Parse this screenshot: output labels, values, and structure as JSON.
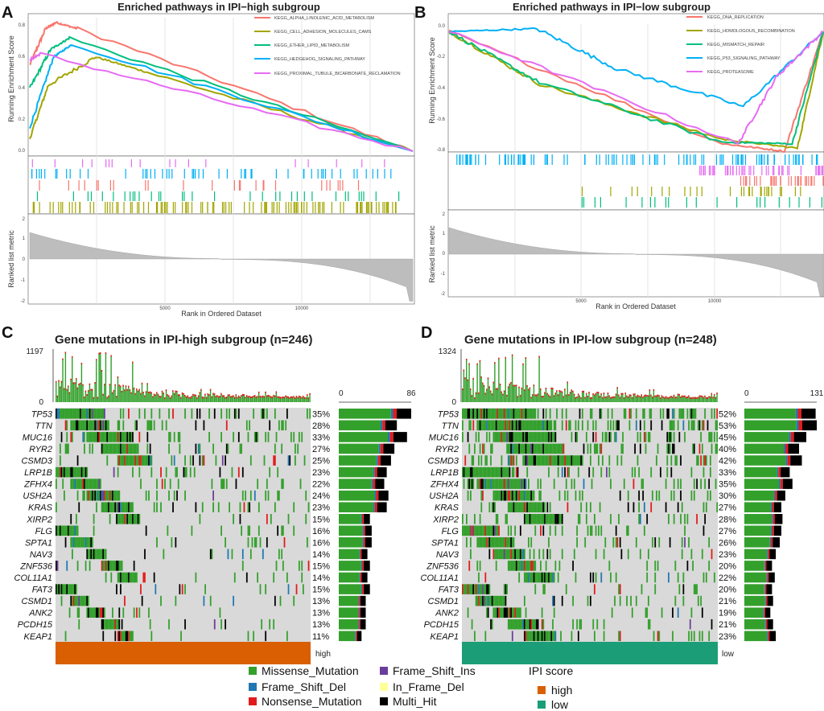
{
  "colors": {
    "Missense_Mutation": "#33a02c",
    "Frame_Shift_Del": "#1f78b4",
    "Nonsense_Mutation": "#e31a1c",
    "Frame_Shift_Ins": "#6a3d9a",
    "In_Frame_Del": "#ffff99",
    "Multi_Hit": "#000000",
    "ipi_high": "#d95f02",
    "ipi_low": "#1b9e77",
    "bg_cell": "#d9d9d9"
  },
  "panels": {
    "A": {
      "letter": "A",
      "title": "Enriched pathways in IPI−high subgroup",
      "ylabel_es": "Running Enrichment Score",
      "ylabel_rank": "Ranked list metric",
      "xlabel": "Rank in Ordered Dataset",
      "es_ticks": [
        "0.0",
        "0.2",
        "0.4",
        "0.6",
        "0.8"
      ],
      "rank_ticks": [
        "2",
        "1",
        "0",
        "-1",
        "-2"
      ],
      "x_ticks": [
        "5000",
        "10000"
      ],
      "legend": [
        {
          "name": "KEGG_ALPHA_LINOLENIC_ACID_METABOLISM",
          "color": "#f8766d"
        },
        {
          "name": "KEGG_CELL_ADHESION_MOLECULES_CAMS",
          "color": "#a3a500"
        },
        {
          "name": "KEGG_ETHER_LIPID_METABOLISM",
          "color": "#00bf7d"
        },
        {
          "name": "KEGG_HEDGEHOG_SIGNALING_PATHWAY",
          "color": "#00b0f6"
        },
        {
          "name": "KEGG_PROXIMAL_TUBULE_BICARBONATE_RECLAMATION",
          "color": "#e76bf3"
        }
      ]
    },
    "B": {
      "letter": "B",
      "title": "Enriched pathways in IPI−low subgroup",
      "ylabel_es": "Running Enrichment Score",
      "ylabel_rank": "Ranked list metric",
      "xlabel": "Rank in Ordered Dataset",
      "es_ticks": [
        "0.0",
        "-0.2",
        "-0.4",
        "-0.6",
        "-0.8"
      ],
      "rank_ticks": [
        "2",
        "1",
        "0",
        "-1",
        "-2"
      ],
      "x_ticks": [
        "5000",
        "10000"
      ],
      "legend": [
        {
          "name": "KEGG_DNA_REPLICATION",
          "color": "#f8766d"
        },
        {
          "name": "KEGG_HOMOLOGOUS_RECOMBINATION",
          "color": "#a3a500"
        },
        {
          "name": "KEGG_MISMATCH_REPAIR",
          "color": "#00bf7d"
        },
        {
          "name": "KEGG_P53_SIGNALING_PATHWAY",
          "color": "#00b0f6"
        },
        {
          "name": "KEGG_PROTEASOME",
          "color": "#e76bf3"
        }
      ]
    },
    "C": {
      "letter": "C",
      "title": "Gene mutations in IPI-high subgroup (n=246)",
      "tmb_max": "1197",
      "tmb_min": "0",
      "bar_min": "0",
      "bar_max": "86",
      "group_label": "high",
      "genes": [
        {
          "gene": "TP53",
          "pct": "35%",
          "count": 86
        },
        {
          "gene": "TTN",
          "pct": "28%",
          "count": 69
        },
        {
          "gene": "MUC16",
          "pct": "33%",
          "count": 81
        },
        {
          "gene": "RYR2",
          "pct": "27%",
          "count": 66
        },
        {
          "gene": "CSMD3",
          "pct": "25%",
          "count": 62
        },
        {
          "gene": "LRP1B",
          "pct": "23%",
          "count": 57
        },
        {
          "gene": "ZFHX4",
          "pct": "22%",
          "count": 54
        },
        {
          "gene": "USH2A",
          "pct": "24%",
          "count": 59
        },
        {
          "gene": "KRAS",
          "pct": "23%",
          "count": 57
        },
        {
          "gene": "XIRP2",
          "pct": "15%",
          "count": 37
        },
        {
          "gene": "FLG",
          "pct": "16%",
          "count": 39
        },
        {
          "gene": "SPTA1",
          "pct": "16%",
          "count": 39
        },
        {
          "gene": "NAV3",
          "pct": "14%",
          "count": 34
        },
        {
          "gene": "ZNF536",
          "pct": "15%",
          "count": 37
        },
        {
          "gene": "COL11A1",
          "pct": "14%",
          "count": 34
        },
        {
          "gene": "FAT3",
          "pct": "15%",
          "count": 37
        },
        {
          "gene": "CSMD1",
          "pct": "13%",
          "count": 32
        },
        {
          "gene": "ANK2",
          "pct": "13%",
          "count": 32
        },
        {
          "gene": "PCDH15",
          "pct": "13%",
          "count": 32
        },
        {
          "gene": "KEAP1",
          "pct": "11%",
          "count": 27
        }
      ]
    },
    "D": {
      "letter": "D",
      "title": "Gene mutations in IPI-low subgroup (n=248)",
      "tmb_max": "1324",
      "tmb_min": "0",
      "bar_min": "0",
      "bar_max": "131",
      "group_label": "low",
      "genes": [
        {
          "gene": "TP53",
          "pct": "52%",
          "count": 129
        },
        {
          "gene": "TTN",
          "pct": "53%",
          "count": 131
        },
        {
          "gene": "MUC16",
          "pct": "45%",
          "count": 112
        },
        {
          "gene": "RYR2",
          "pct": "40%",
          "count": 99
        },
        {
          "gene": "CSMD3",
          "pct": "42%",
          "count": 104
        },
        {
          "gene": "LRP1B",
          "pct": "33%",
          "count": 82
        },
        {
          "gene": "ZFHX4",
          "pct": "35%",
          "count": 87
        },
        {
          "gene": "USH2A",
          "pct": "30%",
          "count": 74
        },
        {
          "gene": "KRAS",
          "pct": "27%",
          "count": 67
        },
        {
          "gene": "XIRP2",
          "pct": "28%",
          "count": 69
        },
        {
          "gene": "FLG",
          "pct": "27%",
          "count": 67
        },
        {
          "gene": "SPTA1",
          "pct": "26%",
          "count": 64
        },
        {
          "gene": "NAV3",
          "pct": "23%",
          "count": 57
        },
        {
          "gene": "ZNF536",
          "pct": "20%",
          "count": 50
        },
        {
          "gene": "COL11A1",
          "pct": "22%",
          "count": 55
        },
        {
          "gene": "FAT3",
          "pct": "20%",
          "count": 50
        },
        {
          "gene": "CSMD1",
          "pct": "21%",
          "count": 52
        },
        {
          "gene": "ANK2",
          "pct": "19%",
          "count": 47
        },
        {
          "gene": "PCDH15",
          "pct": "21%",
          "count": 52
        },
        {
          "gene": "KEAP1",
          "pct": "23%",
          "count": 57
        }
      ]
    }
  },
  "legend": {
    "items": [
      {
        "label": "Missense_Mutation",
        "key": "Missense_Mutation"
      },
      {
        "label": "Frame_Shift_Del",
        "key": "Frame_Shift_Del"
      },
      {
        "label": "Nonsense_Mutation",
        "key": "Nonsense_Mutation"
      },
      {
        "label": "Frame_Shift_Ins",
        "key": "Frame_Shift_Ins"
      },
      {
        "label": "In_Frame_Del",
        "key": "In_Frame_Del"
      },
      {
        "label": "Multi_Hit",
        "key": "Multi_Hit"
      }
    ],
    "ipi_title": "IPI score",
    "ipi_items": [
      {
        "label": "high",
        "key": "ipi_high"
      },
      {
        "label": "low",
        "key": "ipi_low"
      }
    ]
  },
  "chart_data": [
    {
      "type": "line",
      "title": "Enriched pathways in IPI−high subgroup",
      "xlabel": "Rank in Ordered Dataset",
      "ylabel": "Running Enrichment Score",
      "xlim": [
        0,
        14500
      ],
      "ylim": [
        0,
        0.85
      ],
      "series": [
        {
          "name": "KEGG_ALPHA_LINOLENIC_ACID_METABOLISM",
          "x": [
            0,
            600,
            1000,
            1800,
            14500
          ],
          "values": [
            0.55,
            0.78,
            0.82,
            0.78,
            0.0
          ]
        },
        {
          "name": "KEGG_CELL_ADHESION_MOLECULES_CAMS",
          "x": [
            0,
            700,
            2500,
            4500,
            14500
          ],
          "values": [
            0.08,
            0.42,
            0.6,
            0.5,
            0.0
          ]
        },
        {
          "name": "KEGG_ETHER_LIPID_METABOLISM",
          "x": [
            0,
            800,
            1500,
            14500
          ],
          "values": [
            0.4,
            0.65,
            0.72,
            0.0
          ]
        },
        {
          "name": "KEGG_HEDGEHOG_SIGNALING_PATHWAY",
          "x": [
            0,
            900,
            1600,
            14500
          ],
          "values": [
            0.15,
            0.6,
            0.68,
            0.0
          ]
        },
        {
          "name": "KEGG_PROXIMAL_TUBULE_BICARBONATE_RECLAMATION",
          "x": [
            0,
            400,
            14500
          ],
          "values": [
            0.58,
            0.62,
            0.0
          ]
        }
      ]
    },
    {
      "type": "line",
      "title": "Enriched pathways in IPI−low subgroup",
      "xlabel": "Rank in Ordered Dataset",
      "ylabel": "Running Enrichment Score",
      "xlim": [
        0,
        14500
      ],
      "ylim": [
        -0.8,
        0.05
      ],
      "series": [
        {
          "name": "KEGG_DNA_REPLICATION",
          "x": [
            0,
            10600,
            13000,
            14500
          ],
          "values": [
            0.0,
            -0.75,
            -0.8,
            0.0
          ]
        },
        {
          "name": "KEGG_HOMOLOGOUS_RECOMBINATION",
          "x": [
            0,
            3500,
            10600,
            13500,
            14500
          ],
          "values": [
            0.0,
            -0.35,
            -0.72,
            -0.78,
            0.0
          ]
        },
        {
          "name": "KEGG_MISMATCH_REPAIR",
          "x": [
            0,
            3500,
            10600,
            13300,
            14500
          ],
          "values": [
            0.0,
            -0.34,
            -0.74,
            -0.75,
            0.0
          ]
        },
        {
          "name": "KEGG_P53_SIGNALING_PATHWAY",
          "x": [
            0,
            3400,
            6500,
            11400,
            14500
          ],
          "values": [
            0.0,
            0.02,
            -0.25,
            -0.5,
            0.0
          ]
        },
        {
          "name": "KEGG_PROTEASOME",
          "x": [
            0,
            11200,
            12700,
            14500
          ],
          "values": [
            0.0,
            -0.75,
            -0.3,
            0.0
          ]
        }
      ]
    },
    {
      "type": "bar",
      "title": "Gene mutations in IPI-high subgroup (n=246)",
      "categories": [
        "TP53",
        "TTN",
        "MUC16",
        "RYR2",
        "CSMD3",
        "LRP1B",
        "ZFHX4",
        "USH2A",
        "KRAS",
        "XIRP2",
        "FLG",
        "SPTA1",
        "NAV3",
        "ZNF536",
        "COL11A1",
        "FAT3",
        "CSMD1",
        "ANK2",
        "PCDH15",
        "KEAP1"
      ],
      "values": [
        86,
        69,
        81,
        66,
        62,
        57,
        54,
        59,
        57,
        37,
        39,
        39,
        34,
        37,
        34,
        37,
        32,
        32,
        32,
        27
      ],
      "xlim": [
        0,
        86
      ]
    },
    {
      "type": "bar",
      "title": "Gene mutations in IPI-low subgroup (n=248)",
      "categories": [
        "TP53",
        "TTN",
        "MUC16",
        "RYR2",
        "CSMD3",
        "LRP1B",
        "ZFHX4",
        "USH2A",
        "KRAS",
        "XIRP2",
        "FLG",
        "SPTA1",
        "NAV3",
        "ZNF536",
        "COL11A1",
        "FAT3",
        "CSMD1",
        "ANK2",
        "PCDH15",
        "KEAP1"
      ],
      "values": [
        129,
        131,
        112,
        99,
        104,
        82,
        87,
        74,
        67,
        69,
        67,
        64,
        57,
        50,
        55,
        50,
        52,
        47,
        52,
        57
      ],
      "xlim": [
        0,
        131
      ]
    }
  ]
}
